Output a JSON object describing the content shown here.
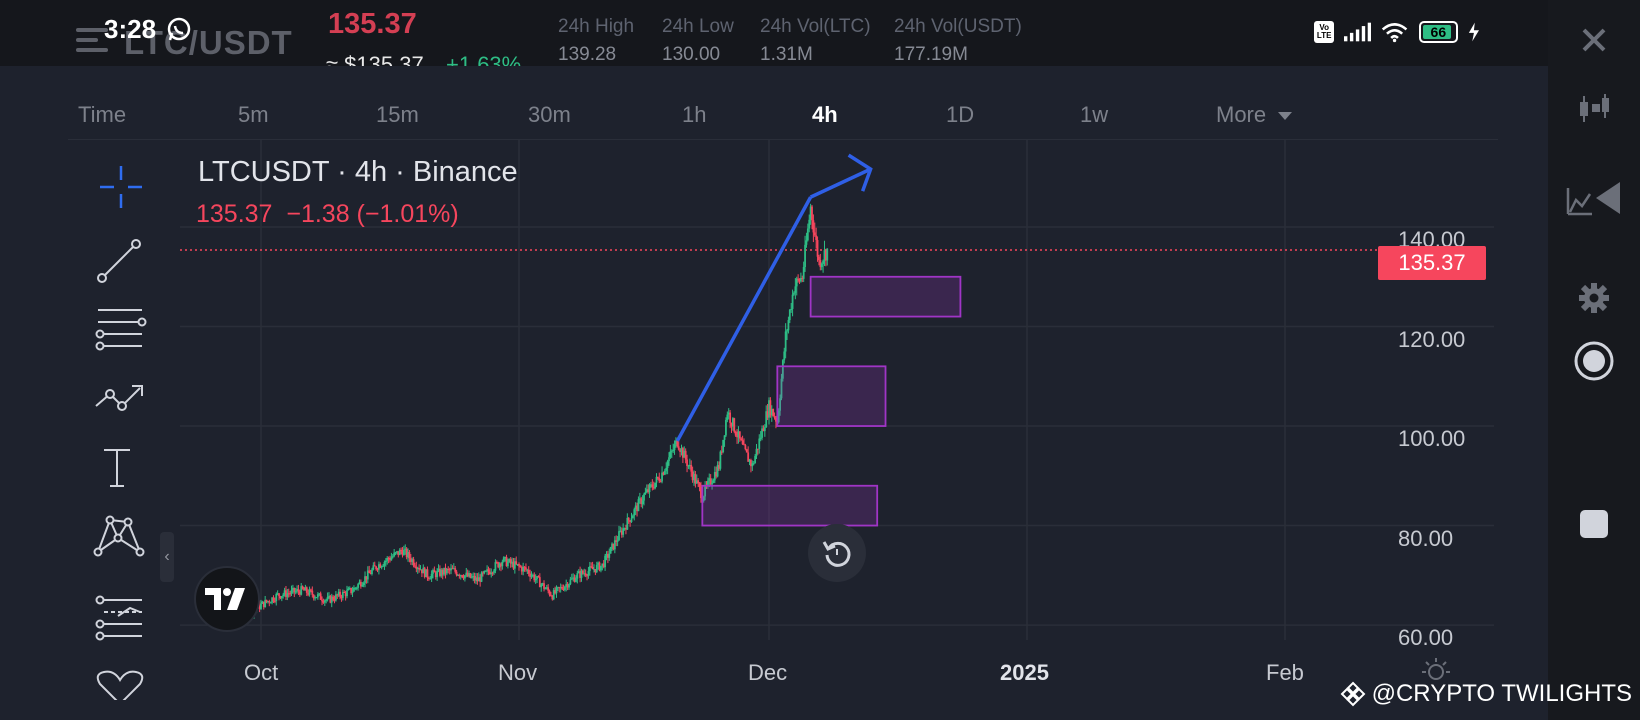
{
  "status_bar": {
    "time": "3:28",
    "network_badge": "Vo\nLTE",
    "battery": "66",
    "icons": [
      "whatsapp-icon",
      "volte-icon",
      "signal-icon",
      "wifi-icon",
      "battery-icon",
      "charging-icon"
    ]
  },
  "header": {
    "pair": "LTC/USDT",
    "price": "135.37",
    "price_usd": "≈ $135.37",
    "change_pct": "+1.63%",
    "stats": [
      {
        "label": "24h High",
        "value": "139.28"
      },
      {
        "label": "24h Low",
        "value": "130.00"
      },
      {
        "label": "24h Vol(LTC)",
        "value": "1.31M"
      },
      {
        "label": "24h Vol(USDT)",
        "value": "177.19M"
      }
    ]
  },
  "timeframes": [
    {
      "label": "Time",
      "active": false
    },
    {
      "label": "5m",
      "active": false
    },
    {
      "label": "15m",
      "active": false
    },
    {
      "label": "30m",
      "active": false
    },
    {
      "label": "1h",
      "active": false
    },
    {
      "label": "4h",
      "active": true
    },
    {
      "label": "1D",
      "active": false
    },
    {
      "label": "1w",
      "active": false
    },
    {
      "label": "More",
      "active": false
    }
  ],
  "legend": {
    "title": "LTCUSDT · 4h · Binance",
    "values": "135.37  −1.38 (−1.01%)"
  },
  "current_price_tag": "135.37",
  "watermark": "@CRYPTO TWILIGHTS",
  "colors": {
    "up": "#2ebd85",
    "down": "#f6465d",
    "zone": "#a035c6",
    "arrow": "#2f5fe6",
    "background": "#1e222d"
  },
  "chart_data": {
    "type": "candlestick",
    "symbol": "LTCUSDT",
    "interval": "4h",
    "exchange": "Binance",
    "y_ticks": [
      "140.00",
      "120.00",
      "100.00",
      "80.00",
      "60.00"
    ],
    "x_ticks": [
      "Oct",
      "Nov",
      "Dec",
      "2025",
      "Feb"
    ],
    "ylim": [
      57,
      158
    ],
    "last_price": 135.37,
    "grid": true,
    "trend_line": [
      {
        "x": "Nov 20",
        "y": 97
      },
      {
        "x": "Dec 6",
        "y": 146
      }
    ],
    "zones": [
      {
        "x_start": "Dec 6",
        "x_end": "Dec 24",
        "y_low": 122,
        "y_high": 130
      },
      {
        "x_start": "Dec 2",
        "x_end": "Dec 15",
        "y_low": 100,
        "y_high": 112
      },
      {
        "x_start": "Nov 23",
        "x_end": "Dec 14",
        "y_low": 80,
        "y_high": 88
      }
    ],
    "trend_path": [
      [
        "Sep 25",
        65
      ],
      [
        "Sep 28",
        68
      ],
      [
        "Sep 30",
        63
      ],
      [
        "Oct 3",
        66
      ],
      [
        "Oct 6",
        67
      ],
      [
        "Oct 9",
        65
      ],
      [
        "Oct 12",
        67
      ],
      [
        "Oct 15",
        72
      ],
      [
        "Oct 18",
        75
      ],
      [
        "Oct 21",
        70
      ],
      [
        "Oct 24",
        71
      ],
      [
        "Oct 27",
        69
      ],
      [
        "Oct 30",
        73
      ],
      [
        "Nov 2",
        71
      ],
      [
        "Nov 5",
        66
      ],
      [
        "Nov 8",
        70
      ],
      [
        "Nov 11",
        72
      ],
      [
        "Nov 13",
        78
      ],
      [
        "Nov 16",
        86
      ],
      [
        "Nov 18",
        90
      ],
      [
        "Nov 20",
        97
      ],
      [
        "Nov 23",
        86
      ],
      [
        "Nov 25",
        92
      ],
      [
        "Nov 26",
        103
      ],
      [
        "Nov 28",
        95
      ],
      [
        "Nov 29",
        92
      ],
      [
        "Nov 30",
        98
      ],
      [
        "Dec 1",
        104
      ],
      [
        "Dec 2",
        101
      ],
      [
        "Dec 3",
        118
      ],
      [
        "Dec 4",
        128
      ],
      [
        "Dec 5",
        130
      ],
      [
        "Dec 6",
        144
      ],
      [
        "Dec 7",
        133
      ],
      [
        "Dec 8",
        135.37
      ]
    ]
  }
}
